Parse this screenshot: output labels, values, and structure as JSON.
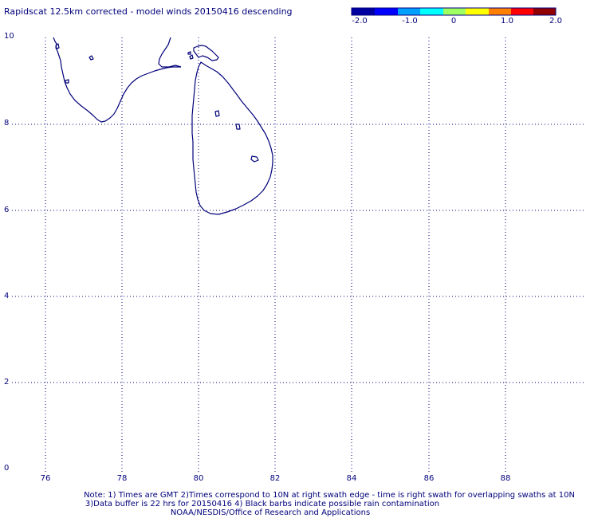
{
  "title": "Rapidscat 12.5km corrected - model winds 20150416 descending",
  "colorbar": {
    "ticks": [
      "-2.0",
      "-1.0",
      "0",
      "1.0",
      "2.0"
    ],
    "colors": [
      "#0000a0",
      "#0000ff",
      "#00a0ff",
      "#00ffff",
      "#a0ff60",
      "#ffff00",
      "#ff8000",
      "#ff0000",
      "#900000"
    ]
  },
  "axes": {
    "x_ticks": [
      "76",
      "78",
      "80",
      "82",
      "84",
      "86",
      "88"
    ],
    "y_ticks": [
      "10",
      "8",
      "6",
      "4",
      "2",
      "0"
    ],
    "line_color": "#00007a"
  },
  "notes": [
    "Note: 1) Times are GMT 2)Times correspond to 10N at right swath edge - time is right swath for overlapping swaths at 10N",
    "3)Data buffer is 22 hrs for 20150416 4) Black barbs indicate possible rain contamination",
    "NOAA/NESDIS/Office of Research and Applications"
  ]
}
